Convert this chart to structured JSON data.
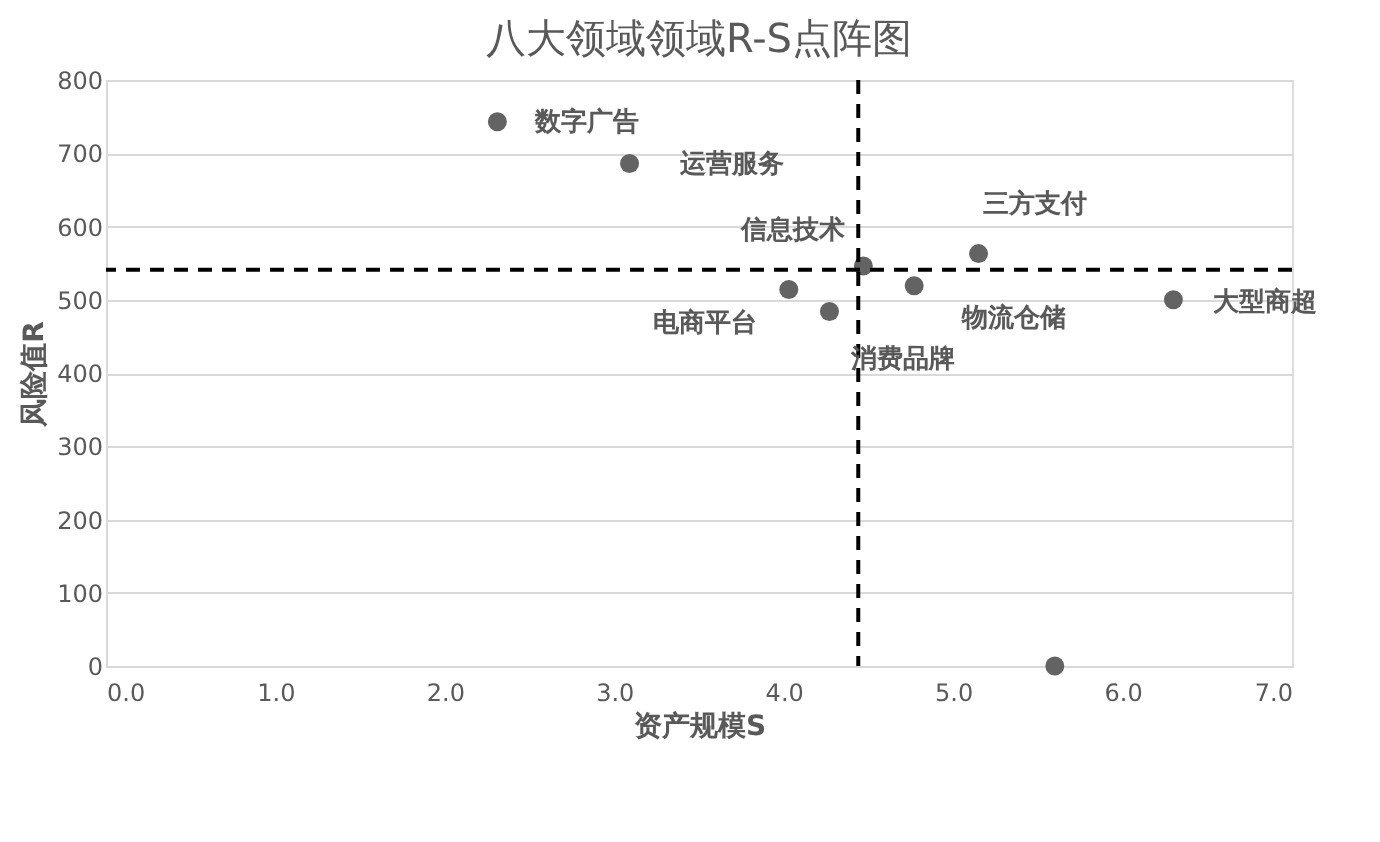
{
  "chart_data": {
    "type": "scatter",
    "title": "八大领域领域R-S点阵图",
    "xlabel": "资产规模S",
    "ylabel": "风险值R",
    "x": [
      2.31,
      3.09,
      4.03,
      4.27,
      4.47,
      4.77,
      5.15,
      6.3,
      5.6
    ],
    "series": [
      {
        "color": "#636363",
        "values": [
          743,
          686,
          514,
          484,
          546,
          519,
          563,
          500,
          0
        ]
      }
    ],
    "marker": "circle",
    "xlim": [
      0,
      7
    ],
    "xticks": [
      {
        "value": 0,
        "label": "0.0"
      },
      {
        "value": 1,
        "label": "1.0"
      },
      {
        "value": 2,
        "label": "2.0"
      },
      {
        "value": 3,
        "label": "3.0"
      },
      {
        "value": 4,
        "label": "4.0"
      },
      {
        "value": 5,
        "label": "5.0"
      },
      {
        "value": 6,
        "label": "6.0"
      },
      {
        "value": 7,
        "label": "7.0"
      }
    ],
    "ylim": [
      0,
      800
    ],
    "yticks": [
      0,
      100,
      200,
      300,
      400,
      500,
      600,
      700,
      800
    ],
    "grid": "y",
    "ref_lines": [
      {
        "axis": "x",
        "value": 4.44,
        "color": "#000000",
        "line_style": "dashed"
      },
      {
        "axis": "y",
        "value": 541,
        "color": "#000000",
        "line_style": "dashed"
      }
    ],
    "annotations": [
      {
        "text": "数字广告",
        "x": 2.31,
        "y": 743
      },
      {
        "text": "运营服务",
        "x": 3.09,
        "y": 686
      },
      {
        "text": "电商平台",
        "x": 4.03,
        "y": 514
      },
      {
        "text": "消费品牌",
        "x": 4.27,
        "y": 484
      },
      {
        "text": "信息技术",
        "x": 4.47,
        "y": 546
      },
      {
        "text": "物流仓储",
        "x": 4.77,
        "y": 519
      },
      {
        "text": "三方支付",
        "x": 5.15,
        "y": 563
      },
      {
        "text": "大型商超",
        "x": 6.3,
        "y": 500
      }
    ]
  }
}
